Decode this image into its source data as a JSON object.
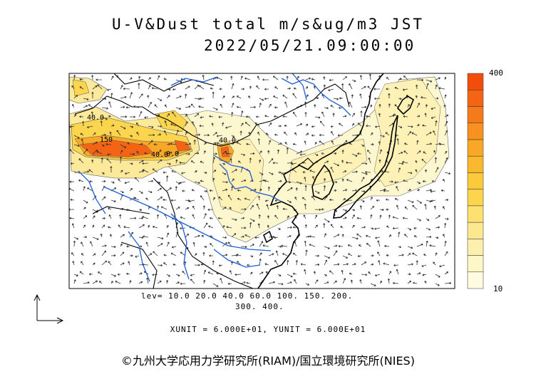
{
  "title": "U-V&Dust total m/s&ug/m3 JST",
  "datetime": "2022/05/21.09:00:00",
  "colorbar": {
    "max_label": "400",
    "min_label": "10",
    "colors": [
      "#fefbe0",
      "#fdf6c6",
      "#fdf0ad",
      "#fce98f",
      "#fce170",
      "#fbd54e",
      "#fbc93a",
      "#f9b82e",
      "#f8a727",
      "#f79221",
      "#f57b1a",
      "#f46414",
      "#f34d0e"
    ]
  },
  "contour_levels": {
    "line1": "lev= 10.0 20.0 40.0 60.0 100. 150. 200.",
    "line2": "300. 400."
  },
  "unit_text": "XUNIT = 6.000E+01, YUNIT = 6.000E+01",
  "credit": "©九州大学応用力学研究所(RIAM)/国立環境研究所(NIES)",
  "map_labels": [
    "40.0",
    "150",
    "40.0",
    "40.0",
    "0.0"
  ],
  "colors": {
    "coast": "#000000",
    "river": "#1f5fd6",
    "border": "#000000"
  }
}
